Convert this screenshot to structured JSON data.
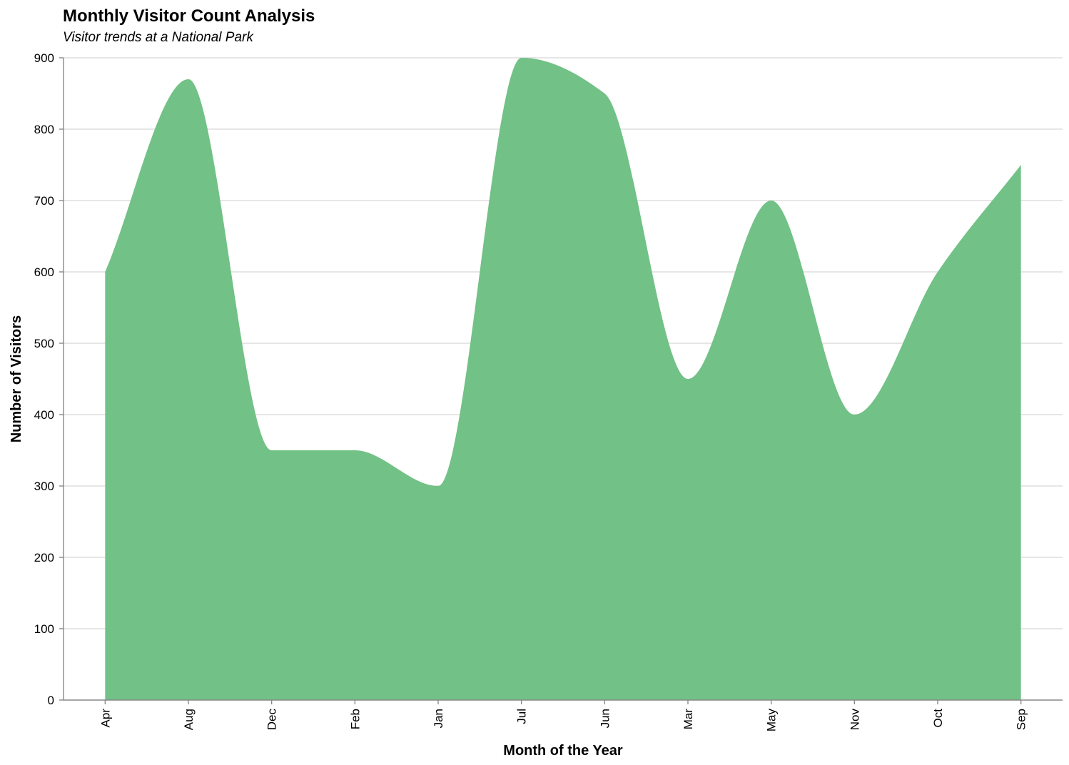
{
  "chart_data": {
    "type": "area",
    "title": "Monthly Visitor Count Analysis",
    "subtitle": "Visitor trends at a National Park",
    "xlabel": "Month of the Year",
    "ylabel": "Number of Visitors",
    "categories": [
      "Apr",
      "Aug",
      "Dec",
      "Feb",
      "Jan",
      "Jul",
      "Jun",
      "Mar",
      "May",
      "Nov",
      "Oct",
      "Sep"
    ],
    "values": [
      600,
      870,
      350,
      350,
      300,
      900,
      850,
      450,
      700,
      400,
      600,
      750
    ],
    "ylim": [
      0,
      900
    ],
    "yticks": [
      0,
      100,
      200,
      300,
      400,
      500,
      600,
      700,
      800,
      900
    ],
    "interpolation": "smooth",
    "grid": true,
    "color": "#72c186"
  }
}
